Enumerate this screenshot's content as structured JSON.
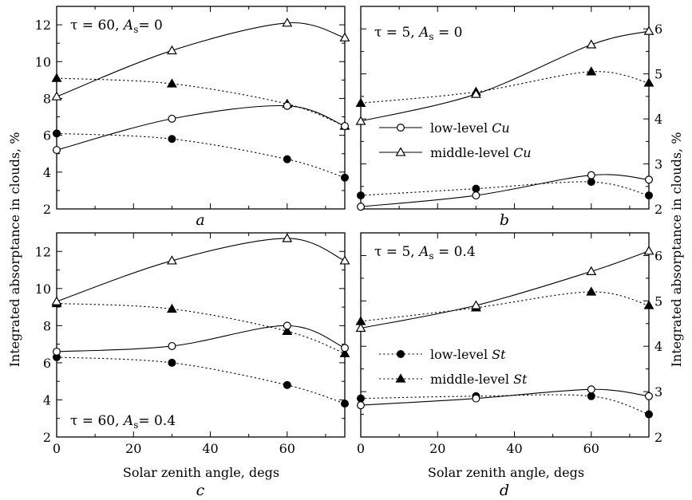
{
  "chart_data": [
    {
      "id": "a",
      "type": "line",
      "panel_label": "a",
      "title_parts": {
        "tau": "τ = 60, ",
        "as": "A",
        "sub": "s",
        "eq": "= 0"
      },
      "x": [
        0,
        30,
        60,
        75
      ],
      "xlim": [
        0,
        75
      ],
      "xticks": [],
      "ylim": [
        2,
        13
      ],
      "yticks": [
        "2",
        "4",
        "6",
        "8",
        "10",
        "12"
      ],
      "ytick_values": [
        2,
        4,
        6,
        8,
        10,
        12
      ],
      "series": [
        {
          "key": "st_low",
          "marker": "filled-circle",
          "line": "dotted",
          "values": [
            6.1,
            5.8,
            4.7,
            3.7
          ]
        },
        {
          "key": "st_mid",
          "marker": "filled-triangle",
          "line": "dotted",
          "values": [
            9.1,
            8.8,
            7.7,
            6.5
          ]
        },
        {
          "key": "cu_low",
          "marker": "open-circle",
          "line": "solid",
          "values": [
            5.2,
            6.9,
            7.6,
            6.5
          ]
        },
        {
          "key": "cu_mid",
          "marker": "open-triangle",
          "line": "solid",
          "values": [
            8.1,
            10.6,
            12.1,
            11.3
          ]
        }
      ]
    },
    {
      "id": "b",
      "type": "line",
      "panel_label": "b",
      "title_parts": {
        "tau": "τ = 5, ",
        "as": "A",
        "sub": "s",
        "eq": " = 0"
      },
      "x": [
        0,
        30,
        60,
        75
      ],
      "xlim": [
        0,
        75
      ],
      "xticks": [],
      "ylim": [
        2,
        6.5
      ],
      "yticks": [
        "2",
        "3",
        "4",
        "5",
        "6"
      ],
      "ytick_values": [
        2,
        3,
        4,
        5,
        6
      ],
      "series": [
        {
          "key": "st_low",
          "marker": "filled-circle",
          "line": "dotted",
          "values": [
            2.3,
            2.45,
            2.6,
            2.3
          ]
        },
        {
          "key": "st_mid",
          "marker": "filled-triangle",
          "line": "dotted",
          "values": [
            4.35,
            4.6,
            5.05,
            4.8
          ]
        },
        {
          "key": "cu_low",
          "marker": "open-circle",
          "line": "solid",
          "values": [
            2.05,
            2.3,
            2.75,
            2.65
          ]
        },
        {
          "key": "cu_mid",
          "marker": "open-triangle",
          "line": "solid",
          "values": [
            3.95,
            4.55,
            5.65,
            5.95
          ]
        }
      ],
      "legend": [
        {
          "marker": "open-circle",
          "line": "solid",
          "label": "low-level ",
          "label_italic": "Cu"
        },
        {
          "marker": "open-triangle",
          "line": "solid",
          "label": "middle-level ",
          "label_italic": "Cu"
        }
      ]
    },
    {
      "id": "c",
      "type": "line",
      "panel_label": "c",
      "title_parts": {
        "tau": "τ = 60, ",
        "as": "A",
        "sub": "s",
        "eq": "= 0.4"
      },
      "x": [
        0,
        30,
        60,
        75
      ],
      "xlim": [
        0,
        75
      ],
      "xticks": [
        "0",
        "20",
        "40",
        "60"
      ],
      "xtick_values": [
        0,
        20,
        40,
        60
      ],
      "ylim": [
        2,
        13
      ],
      "yticks": [
        "2",
        "4",
        "6",
        "8",
        "10",
        "12"
      ],
      "ytick_values": [
        2,
        4,
        6,
        8,
        10,
        12
      ],
      "series": [
        {
          "key": "st_low",
          "marker": "filled-circle",
          "line": "dotted",
          "values": [
            6.3,
            6.0,
            4.8,
            3.8
          ]
        },
        {
          "key": "st_mid",
          "marker": "filled-triangle",
          "line": "dotted",
          "values": [
            9.2,
            8.9,
            7.7,
            6.5
          ]
        },
        {
          "key": "cu_low",
          "marker": "open-circle",
          "line": "solid",
          "values": [
            6.6,
            6.9,
            8.0,
            6.8
          ]
        },
        {
          "key": "cu_mid",
          "marker": "open-triangle",
          "line": "solid",
          "values": [
            9.3,
            11.5,
            12.7,
            11.5
          ]
        }
      ]
    },
    {
      "id": "d",
      "type": "line",
      "panel_label": "d",
      "title_parts": {
        "tau": "τ = 5, ",
        "as": "A",
        "sub": "s",
        "eq": " = 0.4"
      },
      "x": [
        0,
        30,
        60,
        75
      ],
      "xlim": [
        0,
        75
      ],
      "xticks": [
        "0",
        "20",
        "40",
        "60"
      ],
      "xtick_values": [
        0,
        20,
        40,
        60
      ],
      "ylim": [
        2,
        6.5
      ],
      "yticks": [
        "2",
        "3",
        "4",
        "5",
        "6"
      ],
      "ytick_values": [
        2,
        3,
        4,
        5,
        6
      ],
      "series": [
        {
          "key": "st_low",
          "marker": "filled-circle",
          "line": "dotted",
          "values": [
            2.85,
            2.9,
            2.9,
            2.5
          ]
        },
        {
          "key": "st_mid",
          "marker": "filled-triangle",
          "line": "dotted",
          "values": [
            4.55,
            4.85,
            5.2,
            4.9
          ]
        },
        {
          "key": "cu_low",
          "marker": "open-circle",
          "line": "solid",
          "values": [
            2.7,
            2.85,
            3.05,
            2.9
          ]
        },
        {
          "key": "cu_mid",
          "marker": "open-triangle",
          "line": "solid",
          "values": [
            4.4,
            4.9,
            5.65,
            6.1
          ]
        }
      ],
      "legend": [
        {
          "marker": "filled-circle",
          "line": "dotted",
          "label": "low-level ",
          "label_italic": "St"
        },
        {
          "marker": "filled-triangle",
          "line": "dotted",
          "label": "middle-level ",
          "label_italic": "St"
        }
      ]
    }
  ],
  "labels": {
    "ylabel_left": "Integrated absorptance in clouds, %",
    "ylabel_right": "Integrated absorptance in clouds, %",
    "xlabel_left": "Solar zenith angle, degs",
    "xlabel_right": "Solar zenith angle, degs"
  }
}
